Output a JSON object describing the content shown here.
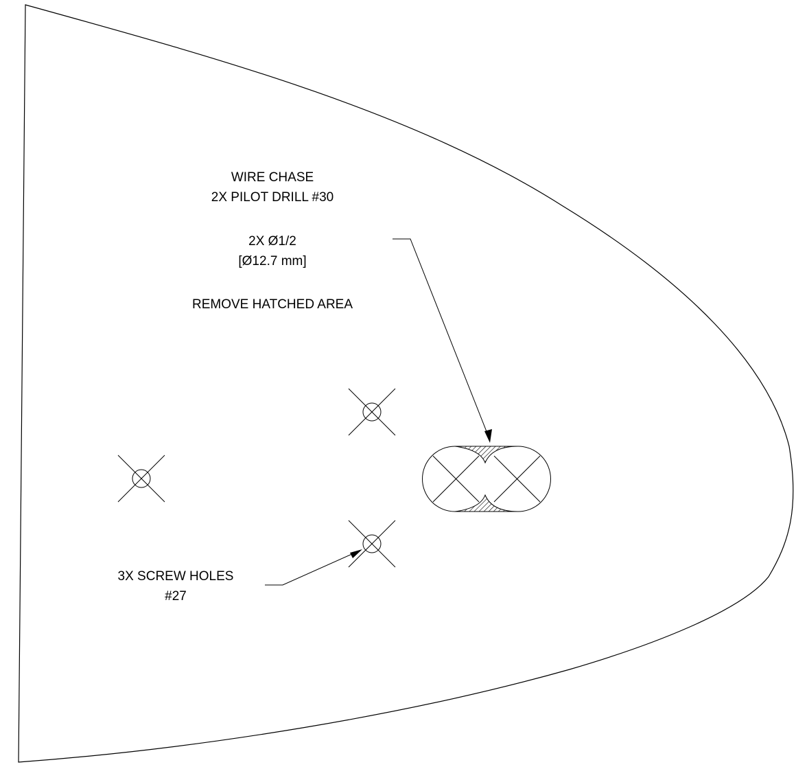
{
  "colors": {
    "line": "#000000",
    "background": "#ffffff"
  },
  "notes": {
    "wire_chase": {
      "line1": "WIRE CHASE",
      "line2": "2X PILOT DRILL #30",
      "line3": "2X Ø1/2",
      "line4": "[Ø12.7 mm]",
      "line5": "REMOVE HATCHED AREA"
    },
    "screw_holes": {
      "line1": "3X SCREW HOLES",
      "line2": "#27"
    }
  }
}
